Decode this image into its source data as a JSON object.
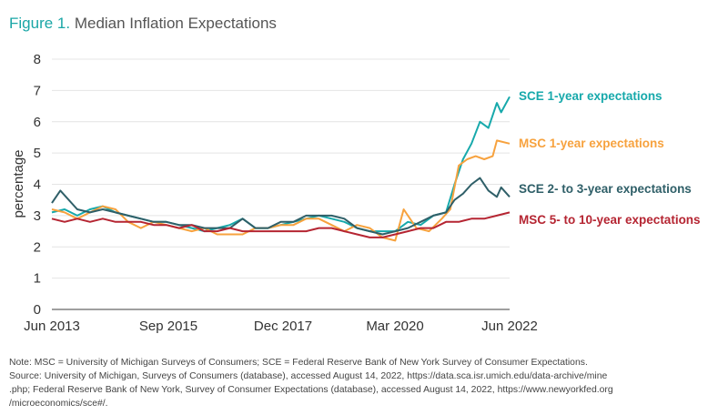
{
  "figure": {
    "number_label": "Figure 1.",
    "title": "Median Inflation Expectations"
  },
  "notes": [
    "Note: MSC = University of Michigan Surveys of Consumers; SCE = Federal Reserve Bank of New York Survey of Consumer Expectations.",
    "Source: University of Michigan, Surveys of Consumers (database), accessed August 14, 2022, https://data.sca.isr.umich.edu/data-archive/mine",
    ".php; Federal Reserve Bank of New York, Survey of Consumer Expectations (database), accessed August 14, 2022, https://www.newyorkfed.org",
    "/microeconomics/sce#/."
  ],
  "chart_data": {
    "type": "line",
    "title": "Median Inflation Expectations",
    "xlabel": "",
    "ylabel": "percentage",
    "ylim": [
      0,
      8
    ],
    "yticks": [
      "0",
      "1",
      "2",
      "3",
      "4",
      "5",
      "6",
      "7",
      "8"
    ],
    "xticks": [
      "Jun 2013",
      "Sep 2015",
      "Dec 2017",
      "Mar 2020",
      "Jun 2022"
    ],
    "xrange": [
      "2013-06",
      "2022-06"
    ],
    "grid": true,
    "series": [
      {
        "name": "SCE 1-year expectations",
        "color": "#17a9ab",
        "values": [
          {
            "x": "2013-06",
            "y": 3.1
          },
          {
            "x": "2013-09",
            "y": 3.2
          },
          {
            "x": "2013-12",
            "y": 3.0
          },
          {
            "x": "2014-03",
            "y": 3.2
          },
          {
            "x": "2014-06",
            "y": 3.3
          },
          {
            "x": "2014-09",
            "y": 3.1
          },
          {
            "x": "2014-12",
            "y": 3.0
          },
          {
            "x": "2015-03",
            "y": 2.9
          },
          {
            "x": "2015-06",
            "y": 2.8
          },
          {
            "x": "2015-09",
            "y": 2.8
          },
          {
            "x": "2015-12",
            "y": 2.7
          },
          {
            "x": "2016-03",
            "y": 2.6
          },
          {
            "x": "2016-06",
            "y": 2.5
          },
          {
            "x": "2016-09",
            "y": 2.6
          },
          {
            "x": "2016-12",
            "y": 2.7
          },
          {
            "x": "2017-03",
            "y": 2.9
          },
          {
            "x": "2017-06",
            "y": 2.6
          },
          {
            "x": "2017-09",
            "y": 2.6
          },
          {
            "x": "2017-12",
            "y": 2.7
          },
          {
            "x": "2018-03",
            "y": 2.8
          },
          {
            "x": "2018-06",
            "y": 2.9
          },
          {
            "x": "2018-09",
            "y": 3.0
          },
          {
            "x": "2018-12",
            "y": 2.9
          },
          {
            "x": "2019-03",
            "y": 2.8
          },
          {
            "x": "2019-06",
            "y": 2.6
          },
          {
            "x": "2019-09",
            "y": 2.5
          },
          {
            "x": "2019-12",
            "y": 2.5
          },
          {
            "x": "2020-03",
            "y": 2.5
          },
          {
            "x": "2020-06",
            "y": 2.8
          },
          {
            "x": "2020-09",
            "y": 2.7
          },
          {
            "x": "2020-12",
            "y": 3.0
          },
          {
            "x": "2021-03",
            "y": 3.1
          },
          {
            "x": "2021-05",
            "y": 4.0
          },
          {
            "x": "2021-07",
            "y": 4.8
          },
          {
            "x": "2021-09",
            "y": 5.3
          },
          {
            "x": "2021-11",
            "y": 6.0
          },
          {
            "x": "2022-01",
            "y": 5.8
          },
          {
            "x": "2022-03",
            "y": 6.6
          },
          {
            "x": "2022-04",
            "y": 6.3
          },
          {
            "x": "2022-06",
            "y": 6.8
          }
        ]
      },
      {
        "name": "MSC 1-year expectations",
        "color": "#f7a23e",
        "values": [
          {
            "x": "2013-06",
            "y": 3.2
          },
          {
            "x": "2013-09",
            "y": 3.1
          },
          {
            "x": "2013-12",
            "y": 2.9
          },
          {
            "x": "2014-03",
            "y": 3.1
          },
          {
            "x": "2014-06",
            "y": 3.3
          },
          {
            "x": "2014-09",
            "y": 3.2
          },
          {
            "x": "2014-12",
            "y": 2.8
          },
          {
            "x": "2015-03",
            "y": 2.6
          },
          {
            "x": "2015-06",
            "y": 2.8
          },
          {
            "x": "2015-09",
            "y": 2.7
          },
          {
            "x": "2015-12",
            "y": 2.6
          },
          {
            "x": "2016-03",
            "y": 2.5
          },
          {
            "x": "2016-06",
            "y": 2.6
          },
          {
            "x": "2016-09",
            "y": 2.4
          },
          {
            "x": "2016-12",
            "y": 2.4
          },
          {
            "x": "2017-03",
            "y": 2.4
          },
          {
            "x": "2017-06",
            "y": 2.6
          },
          {
            "x": "2017-09",
            "y": 2.6
          },
          {
            "x": "2017-12",
            "y": 2.7
          },
          {
            "x": "2018-03",
            "y": 2.7
          },
          {
            "x": "2018-06",
            "y": 2.9
          },
          {
            "x": "2018-09",
            "y": 2.9
          },
          {
            "x": "2018-12",
            "y": 2.7
          },
          {
            "x": "2019-03",
            "y": 2.5
          },
          {
            "x": "2019-06",
            "y": 2.7
          },
          {
            "x": "2019-09",
            "y": 2.6
          },
          {
            "x": "2019-12",
            "y": 2.3
          },
          {
            "x": "2020-03",
            "y": 2.2
          },
          {
            "x": "2020-05",
            "y": 3.2
          },
          {
            "x": "2020-08",
            "y": 2.6
          },
          {
            "x": "2020-11",
            "y": 2.5
          },
          {
            "x": "2021-02",
            "y": 2.9
          },
          {
            "x": "2021-04",
            "y": 3.2
          },
          {
            "x": "2021-06",
            "y": 4.6
          },
          {
            "x": "2021-08",
            "y": 4.8
          },
          {
            "x": "2021-10",
            "y": 4.9
          },
          {
            "x": "2021-12",
            "y": 4.8
          },
          {
            "x": "2022-02",
            "y": 4.9
          },
          {
            "x": "2022-03",
            "y": 5.4
          },
          {
            "x": "2022-06",
            "y": 5.3
          }
        ]
      },
      {
        "name": "SCE 2- to 3-year expectations",
        "color": "#2f5f68",
        "values": [
          {
            "x": "2013-06",
            "y": 3.4
          },
          {
            "x": "2013-08",
            "y": 3.8
          },
          {
            "x": "2013-12",
            "y": 3.2
          },
          {
            "x": "2014-03",
            "y": 3.1
          },
          {
            "x": "2014-06",
            "y": 3.2
          },
          {
            "x": "2014-09",
            "y": 3.1
          },
          {
            "x": "2014-12",
            "y": 3.0
          },
          {
            "x": "2015-03",
            "y": 2.9
          },
          {
            "x": "2015-06",
            "y": 2.8
          },
          {
            "x": "2015-09",
            "y": 2.8
          },
          {
            "x": "2015-12",
            "y": 2.7
          },
          {
            "x": "2016-03",
            "y": 2.7
          },
          {
            "x": "2016-06",
            "y": 2.6
          },
          {
            "x": "2016-09",
            "y": 2.6
          },
          {
            "x": "2016-12",
            "y": 2.6
          },
          {
            "x": "2017-03",
            "y": 2.9
          },
          {
            "x": "2017-06",
            "y": 2.6
          },
          {
            "x": "2017-09",
            "y": 2.6
          },
          {
            "x": "2017-12",
            "y": 2.8
          },
          {
            "x": "2018-03",
            "y": 2.8
          },
          {
            "x": "2018-06",
            "y": 3.0
          },
          {
            "x": "2018-09",
            "y": 3.0
          },
          {
            "x": "2018-12",
            "y": 3.0
          },
          {
            "x": "2019-03",
            "y": 2.9
          },
          {
            "x": "2019-06",
            "y": 2.6
          },
          {
            "x": "2019-09",
            "y": 2.5
          },
          {
            "x": "2019-12",
            "y": 2.4
          },
          {
            "x": "2020-03",
            "y": 2.5
          },
          {
            "x": "2020-06",
            "y": 2.6
          },
          {
            "x": "2020-09",
            "y": 2.8
          },
          {
            "x": "2020-12",
            "y": 3.0
          },
          {
            "x": "2021-03",
            "y": 3.1
          },
          {
            "x": "2021-05",
            "y": 3.5
          },
          {
            "x": "2021-07",
            "y": 3.7
          },
          {
            "x": "2021-09",
            "y": 4.0
          },
          {
            "x": "2021-11",
            "y": 4.2
          },
          {
            "x": "2022-01",
            "y": 3.8
          },
          {
            "x": "2022-03",
            "y": 3.6
          },
          {
            "x": "2022-04",
            "y": 3.9
          },
          {
            "x": "2022-06",
            "y": 3.6
          }
        ]
      },
      {
        "name": "MSC 5- to 10-year expectations",
        "color": "#b52532",
        "values": [
          {
            "x": "2013-06",
            "y": 2.9
          },
          {
            "x": "2013-09",
            "y": 2.8
          },
          {
            "x": "2013-12",
            "y": 2.9
          },
          {
            "x": "2014-03",
            "y": 2.8
          },
          {
            "x": "2014-06",
            "y": 2.9
          },
          {
            "x": "2014-09",
            "y": 2.8
          },
          {
            "x": "2014-12",
            "y": 2.8
          },
          {
            "x": "2015-03",
            "y": 2.8
          },
          {
            "x": "2015-06",
            "y": 2.7
          },
          {
            "x": "2015-09",
            "y": 2.7
          },
          {
            "x": "2015-12",
            "y": 2.6
          },
          {
            "x": "2016-03",
            "y": 2.7
          },
          {
            "x": "2016-06",
            "y": 2.5
          },
          {
            "x": "2016-09",
            "y": 2.5
          },
          {
            "x": "2016-12",
            "y": 2.6
          },
          {
            "x": "2017-03",
            "y": 2.5
          },
          {
            "x": "2017-06",
            "y": 2.5
          },
          {
            "x": "2017-09",
            "y": 2.5
          },
          {
            "x": "2017-12",
            "y": 2.5
          },
          {
            "x": "2018-03",
            "y": 2.5
          },
          {
            "x": "2018-06",
            "y": 2.5
          },
          {
            "x": "2018-09",
            "y": 2.6
          },
          {
            "x": "2018-12",
            "y": 2.6
          },
          {
            "x": "2019-03",
            "y": 2.5
          },
          {
            "x": "2019-06",
            "y": 2.4
          },
          {
            "x": "2019-09",
            "y": 2.3
          },
          {
            "x": "2019-12",
            "y": 2.3
          },
          {
            "x": "2020-03",
            "y": 2.4
          },
          {
            "x": "2020-06",
            "y": 2.5
          },
          {
            "x": "2020-09",
            "y": 2.6
          },
          {
            "x": "2020-12",
            "y": 2.6
          },
          {
            "x": "2021-03",
            "y": 2.8
          },
          {
            "x": "2021-06",
            "y": 2.8
          },
          {
            "x": "2021-09",
            "y": 2.9
          },
          {
            "x": "2021-12",
            "y": 2.9
          },
          {
            "x": "2022-03",
            "y": 3.0
          },
          {
            "x": "2022-06",
            "y": 3.1
          }
        ]
      }
    ]
  }
}
